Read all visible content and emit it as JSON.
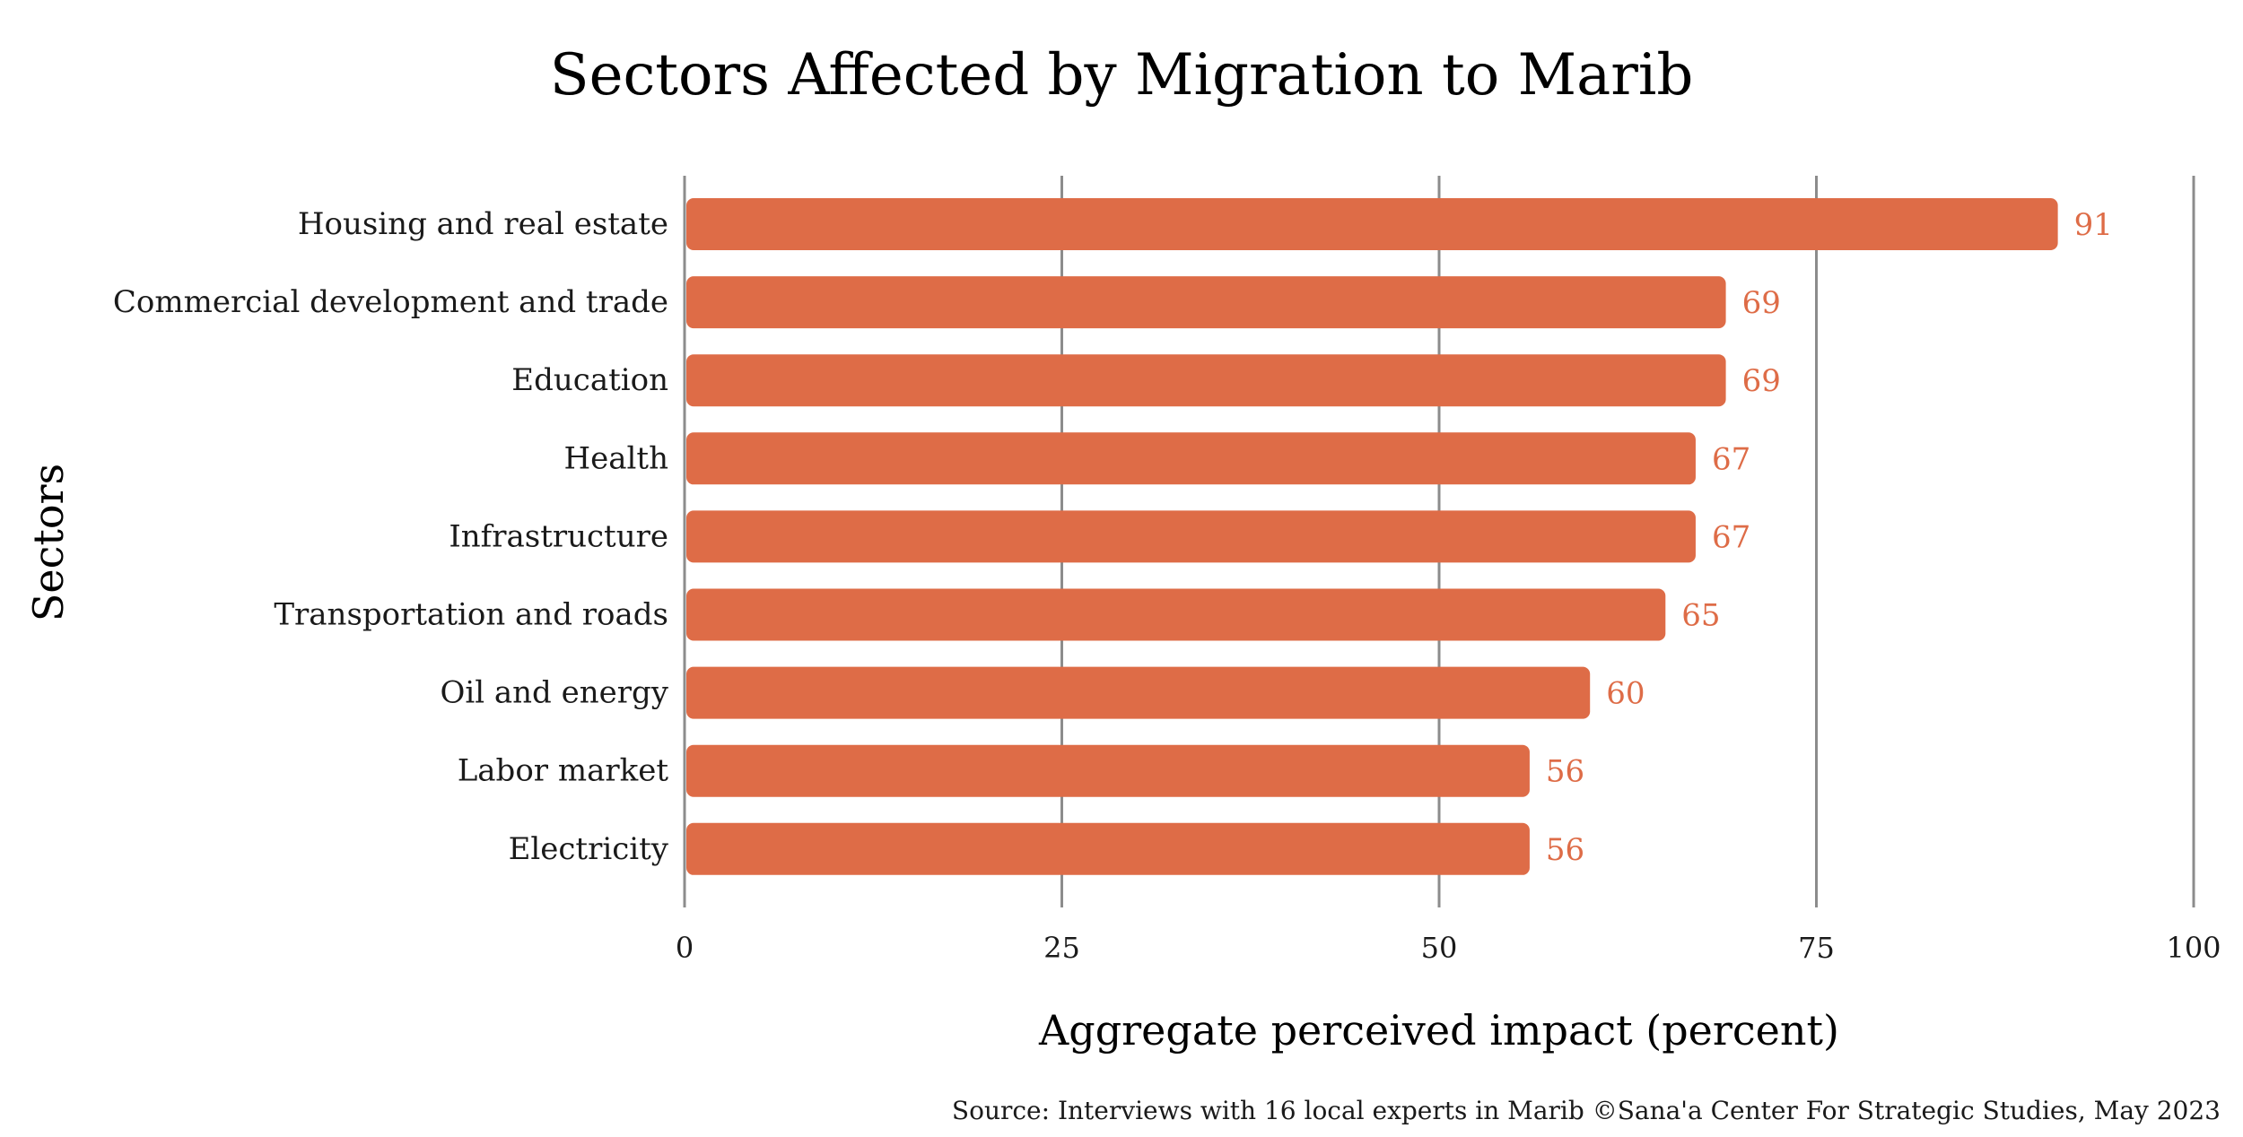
{
  "chart_data": {
    "type": "bar",
    "orientation": "horizontal",
    "title": "Sectors Affected by Migration to Marib",
    "xlabel": "Aggregate perceived impact (percent)",
    "ylabel": "Sectors",
    "categories": [
      "Housing and real estate",
      "Commercial development and trade",
      "Education",
      "Health",
      "Infrastructure",
      "Transportation and roads",
      "Oil and energy",
      "Labor market",
      "Electricity"
    ],
    "values": [
      91,
      69,
      69,
      67,
      67,
      65,
      60,
      56,
      56
    ],
    "xlim": [
      0,
      100
    ],
    "xticks": [
      0,
      25,
      50,
      75,
      100
    ],
    "grid": "vertical",
    "bar_color": "#de6c47",
    "value_label_color": "#de6c47",
    "gridline_color": "#8c8c8c",
    "source": "Source: Interviews with 16 local experts in Marib ©Sana'a Center For Strategic Studies, May 2023"
  }
}
